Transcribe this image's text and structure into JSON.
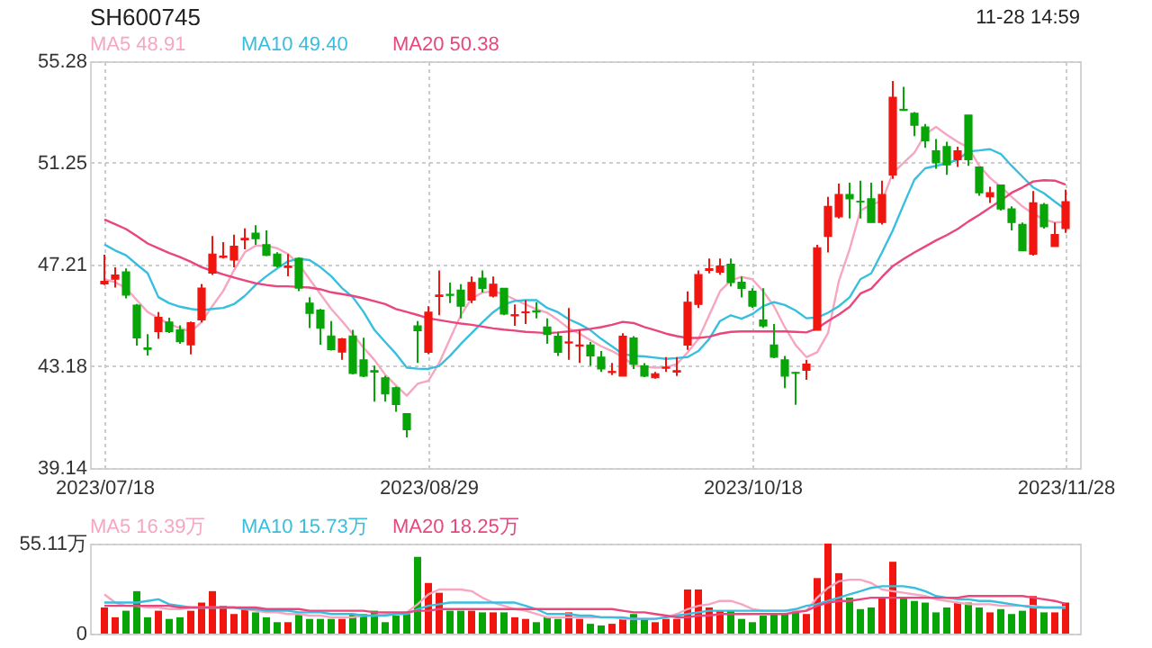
{
  "chart_data": [
    {
      "type": "candlestick",
      "title": "SH600745",
      "annotations": [
        "11-28 14:59"
      ],
      "categories": [
        "2023/07/18",
        null,
        null,
        null,
        null,
        null,
        null,
        null,
        null,
        null,
        null,
        null,
        null,
        null,
        null,
        null,
        null,
        null,
        null,
        null,
        null,
        null,
        null,
        null,
        null,
        null,
        null,
        null,
        null,
        null,
        "2023/08/29",
        null,
        null,
        null,
        null,
        null,
        null,
        null,
        null,
        null,
        null,
        null,
        null,
        null,
        null,
        null,
        null,
        null,
        null,
        null,
        null,
        null,
        null,
        null,
        null,
        null,
        null,
        null,
        null,
        null,
        "2023/10/18",
        null,
        null,
        null,
        null,
        null,
        null,
        null,
        null,
        null,
        null,
        null,
        null,
        null,
        null,
        null,
        null,
        null,
        null,
        null,
        null,
        null,
        null,
        null,
        null,
        null,
        null,
        null,
        null,
        "2023/11/28"
      ],
      "ohlc": [
        [
          46.45,
          47.6,
          46.4,
          46.55
        ],
        [
          46.63,
          47.1,
          46.3,
          46.8
        ],
        [
          46.92,
          47.06,
          45.87,
          46.0
        ],
        [
          45.6,
          45.65,
          44.0,
          44.3
        ],
        [
          43.9,
          44.45,
          43.6,
          43.85
        ],
        [
          44.55,
          45.33,
          44.26,
          45.12
        ],
        [
          44.93,
          45.1,
          44.5,
          44.55
        ],
        [
          44.62,
          44.8,
          44.07,
          44.15
        ],
        [
          44.03,
          44.95,
          43.65,
          44.9
        ],
        [
          45.02,
          46.44,
          44.92,
          46.28
        ],
        [
          46.87,
          48.34,
          46.8,
          47.63
        ],
        [
          47.5,
          48.1,
          47.45,
          47.55
        ],
        [
          47.39,
          48.4,
          47.1,
          47.94
        ],
        [
          48.2,
          48.65,
          47.82,
          48.25
        ],
        [
          48.46,
          48.77,
          48.0,
          48.24
        ],
        [
          48.0,
          48.57,
          47.55,
          47.58
        ],
        [
          47.63,
          47.7,
          47.1,
          47.15
        ],
        [
          47.1,
          47.63,
          46.75,
          47.15
        ],
        [
          47.46,
          47.5,
          46.16,
          46.28
        ],
        [
          45.68,
          45.92,
          44.69,
          45.28
        ],
        [
          45.4,
          45.45,
          44.03,
          44.69
        ],
        [
          44.38,
          44.97,
          43.8,
          43.84
        ],
        [
          43.74,
          44.3,
          43.43,
          44.26
        ],
        [
          44.38,
          44.62,
          42.85,
          42.89
        ],
        [
          43.43,
          44.31,
          42.75,
          42.79
        ],
        [
          43.0,
          43.2,
          41.77,
          42.95
        ],
        [
          42.72,
          42.8,
          41.77,
          42.08
        ],
        [
          42.32,
          42.37,
          41.37,
          41.66
        ],
        [
          41.3,
          41.3,
          40.35,
          40.66
        ],
        [
          44.78,
          44.97,
          43.31,
          44.59
        ],
        [
          43.73,
          45.56,
          43.66,
          45.32
        ],
        [
          45.95,
          46.98,
          45.2,
          46.0
        ],
        [
          46.03,
          46.5,
          45.68,
          45.99
        ],
        [
          46.2,
          46.43,
          45.08,
          45.56
        ],
        [
          45.8,
          46.74,
          45.68,
          46.5
        ],
        [
          46.67,
          46.98,
          46.1,
          46.27
        ],
        [
          45.96,
          46.74,
          45.91,
          46.43
        ],
        [
          46.27,
          46.27,
          45.2,
          45.25
        ],
        [
          45.18,
          45.63,
          44.78,
          45.22
        ],
        [
          45.3,
          45.8,
          44.85,
          45.33
        ],
        [
          45.38,
          45.72,
          45.08,
          45.33
        ],
        [
          44.73,
          45.08,
          44.07,
          44.44
        ],
        [
          44.37,
          44.54,
          43.59,
          43.73
        ],
        [
          44.1,
          45.49,
          43.43,
          44.14
        ],
        [
          43.98,
          44.61,
          43.31,
          44.02
        ],
        [
          44.02,
          44.14,
          43.19,
          43.59
        ],
        [
          43.54,
          43.78,
          42.95,
          43.07
        ],
        [
          42.93,
          43.31,
          42.83,
          42.97
        ],
        [
          42.79,
          44.49,
          42.79,
          44.37
        ],
        [
          44.3,
          44.37,
          43.07,
          43.26
        ],
        [
          43.19,
          43.3,
          42.75,
          42.79
        ],
        [
          42.72,
          42.95,
          42.68,
          42.88
        ],
        [
          43.1,
          43.54,
          42.95,
          43.14
        ],
        [
          42.95,
          43.54,
          42.79,
          43.0
        ],
        [
          44.02,
          46.15,
          43.83,
          45.72
        ],
        [
          45.63,
          46.98,
          45.49,
          46.81
        ],
        [
          46.98,
          47.45,
          46.86,
          47.05
        ],
        [
          46.91,
          47.45,
          46.81,
          47.15
        ],
        [
          47.22,
          47.45,
          46.34,
          46.5
        ],
        [
          46.51,
          46.74,
          45.91,
          46.27
        ],
        [
          46.15,
          46.27,
          45.5,
          45.56
        ],
        [
          45.01,
          46.27,
          44.7,
          44.78
        ],
        [
          44.02,
          44.85,
          43.5,
          43.54
        ],
        [
          43.43,
          43.59,
          42.31,
          42.79
        ],
        [
          42.93,
          42.95,
          41.65,
          42.9
        ],
        [
          43.02,
          43.43,
          42.64,
          43.26
        ],
        [
          44.61,
          48.0,
          44.61,
          47.88
        ],
        [
          48.33,
          49.9,
          47.69,
          49.52
        ],
        [
          49.11,
          50.42,
          49.04,
          49.99
        ],
        [
          49.99,
          50.46,
          49.04,
          49.82
        ],
        [
          49.72,
          50.54,
          49.04,
          49.7
        ],
        [
          49.82,
          50.46,
          48.88,
          48.88
        ],
        [
          48.88,
          50.54,
          48.8,
          49.99
        ],
        [
          50.77,
          54.49,
          50.61,
          53.85
        ],
        [
          53.37,
          54.26,
          53.31,
          53.33
        ],
        [
          53.21,
          53.26,
          52.31,
          52.74
        ],
        [
          52.67,
          52.79,
          51.84,
          52.12
        ],
        [
          51.72,
          52.19,
          51.01,
          51.25
        ],
        [
          51.89,
          52.08,
          50.77,
          51.17
        ],
        [
          51.37,
          51.89,
          51.08,
          51.72
        ],
        [
          53.14,
          53.14,
          51.13,
          51.37
        ],
        [
          51.08,
          51.08,
          49.94,
          50.06
        ],
        [
          49.9,
          50.3,
          49.66,
          50.06
        ],
        [
          50.37,
          50.37,
          49.35,
          49.42
        ],
        [
          49.42,
          49.52,
          48.57,
          48.88
        ],
        [
          48.8,
          48.88,
          47.76,
          47.76
        ],
        [
          47.62,
          50.13,
          47.57,
          49.66
        ],
        [
          49.59,
          49.66,
          48.64,
          48.71
        ],
        [
          47.93,
          48.88,
          47.93,
          48.4
        ],
        [
          48.64,
          50.18,
          48.47,
          49.71
        ]
      ],
      "colors": [
        "#f0160f",
        "#f0160f",
        "#07a507",
        "#07a507",
        "#07a507",
        "#f0160f",
        "#07a507",
        "#07a507",
        "#f0160f",
        "#f0160f",
        "#f0160f",
        "#f0160f",
        "#f0160f",
        "#f0160f",
        "#07a507",
        "#07a507",
        "#07a507",
        "#f0160f",
        "#07a507",
        "#07a507",
        "#07a507",
        "#07a507",
        "#f0160f",
        "#07a507",
        "#07a507",
        "#07a507",
        "#07a507",
        "#07a507",
        "#07a507",
        "#07a507",
        "#f0160f",
        "#f0160f",
        "#07a507",
        "#07a507",
        "#f0160f",
        "#07a507",
        "#f0160f",
        "#07a507",
        "#f0160f",
        "#f0160f",
        "#07a507",
        "#07a507",
        "#07a507",
        "#f0160f",
        "#f0160f",
        "#07a507",
        "#07a507",
        "#f0160f",
        "#f0160f",
        "#07a507",
        "#07a507",
        "#f0160f",
        "#f0160f",
        "#f0160f",
        "#f0160f",
        "#f0160f",
        "#f0160f",
        "#f0160f",
        "#07a507",
        "#07a507",
        "#07a507",
        "#07a507",
        "#07a507",
        "#07a507",
        "#07a507",
        "#f0160f",
        "#f0160f",
        "#f0160f",
        "#f0160f",
        "#07a507",
        "#07a507",
        "#07a507",
        "#f0160f",
        "#f0160f",
        "#07a507",
        "#07a507",
        "#07a507",
        "#07a507",
        "#07a507",
        "#f0160f",
        "#07a507",
        "#07a507",
        "#f0160f",
        "#07a507",
        "#07a507",
        "#07a507",
        "#f0160f",
        "#07a507",
        "#f0160f",
        "#f0160f"
      ],
      "series": [
        {
          "name": "MA5 48.91",
          "type": "line",
          "color": "#f7a6c2",
          "values": [
            46.63,
            46.51,
            46.28,
            45.8,
            45.33,
            45.09,
            44.85,
            44.69,
            44.55,
            44.93,
            45.57,
            46.16,
            46.99,
            47.7,
            47.96,
            47.96,
            47.86,
            47.63,
            47.22,
            46.63,
            46.04,
            45.45,
            44.97,
            44.45,
            43.91,
            43.43,
            42.84,
            42.41,
            42.01,
            42.48,
            42.6,
            43.31,
            44.26,
            45.2,
            45.87,
            46.1,
            46.15,
            46.03,
            45.82,
            45.63,
            45.44,
            45.3,
            45.01,
            44.68,
            44.47,
            44.21,
            43.97,
            43.78,
            43.54,
            43.21,
            43.16,
            43.12,
            43.14,
            43.26,
            43.73,
            44.26,
            45.2,
            46.15,
            46.58,
            46.72,
            46.63,
            46.15,
            45.56,
            44.73,
            44.02,
            43.54,
            43.73,
            44.49,
            46.55,
            47.81,
            49.35,
            49.59,
            49.73,
            50.84,
            51.25,
            51.65,
            52.38,
            52.67,
            52.36,
            52.08,
            51.86,
            51.13,
            50.65,
            50.3,
            49.9,
            49.52,
            49.23,
            49.0,
            48.88,
            48.91
          ]
        },
        {
          "name": "MA10 49.40",
          "type": "line",
          "color": "#38bfdf",
          "values": [
            48.01,
            47.77,
            47.58,
            47.22,
            46.87,
            45.92,
            45.68,
            45.54,
            45.45,
            45.4,
            45.45,
            45.49,
            45.64,
            45.97,
            46.4,
            46.75,
            47.06,
            47.34,
            47.44,
            47.39,
            47.11,
            46.75,
            46.28,
            45.92,
            45.33,
            44.62,
            44.14,
            43.67,
            43.12,
            43.08,
            43.07,
            43.19,
            43.59,
            44.06,
            44.49,
            44.92,
            45.32,
            45.63,
            45.77,
            45.8,
            45.8,
            45.49,
            45.32,
            45.04,
            44.85,
            44.61,
            44.26,
            43.97,
            43.66,
            43.59,
            43.57,
            43.52,
            43.47,
            43.5,
            43.54,
            43.78,
            44.26,
            44.97,
            45.2,
            45.06,
            45.25,
            45.56,
            45.72,
            45.61,
            45.39,
            45.08,
            45.11,
            45.3,
            45.56,
            45.91,
            46.63,
            46.86,
            47.69,
            48.57,
            49.59,
            50.58,
            51.03,
            51.13,
            51.22,
            51.37,
            51.7,
            51.74,
            51.79,
            51.6,
            51.13,
            50.7,
            50.27,
            50.04,
            49.71,
            49.4
          ]
        },
        {
          "name": "MA20 50.38",
          "type": "line",
          "color": "#e8477e",
          "values": [
            49.0,
            48.81,
            48.62,
            48.34,
            48.05,
            47.86,
            47.67,
            47.51,
            47.32,
            47.11,
            46.96,
            46.82,
            46.7,
            46.58,
            46.47,
            46.4,
            46.35,
            46.35,
            46.32,
            46.3,
            46.23,
            46.11,
            46.04,
            45.97,
            45.87,
            45.76,
            45.64,
            45.45,
            45.33,
            45.21,
            45.08,
            45.01,
            44.94,
            44.87,
            44.82,
            44.75,
            44.68,
            44.63,
            44.59,
            44.54,
            44.52,
            44.49,
            44.52,
            44.56,
            44.61,
            44.66,
            44.73,
            44.82,
            44.94,
            44.89,
            44.73,
            44.61,
            44.47,
            44.37,
            44.3,
            44.3,
            44.35,
            44.47,
            44.54,
            44.56,
            44.56,
            44.56,
            44.56,
            44.56,
            44.54,
            44.52,
            44.68,
            44.97,
            45.23,
            45.53,
            46.06,
            46.25,
            46.72,
            47.15,
            47.43,
            47.69,
            47.93,
            48.17,
            48.38,
            48.62,
            48.92,
            49.18,
            49.47,
            49.75,
            50.06,
            50.27,
            50.51,
            50.56,
            50.54,
            50.38
          ]
        }
      ],
      "ylim": [
        39.14,
        55.28
      ],
      "yticks": [
        39.14,
        43.18,
        47.21,
        51.25,
        55.28
      ],
      "grid": true,
      "legend": "top left"
    },
    {
      "type": "bar",
      "categories": [
        null,
        null,
        null,
        null,
        null,
        null,
        null,
        null,
        null,
        null,
        null,
        null,
        null,
        null,
        null,
        null,
        null,
        null,
        null,
        null,
        null,
        null,
        null,
        null,
        null,
        null,
        null,
        null,
        null,
        null,
        null,
        null,
        null,
        null,
        null,
        null,
        null,
        null,
        null,
        null,
        null,
        null,
        null,
        null,
        null,
        null,
        null,
        null,
        null,
        null,
        null,
        null,
        null,
        null,
        null,
        null,
        null,
        null,
        null,
        null,
        null,
        null,
        null,
        null,
        null,
        null,
        null,
        null,
        null,
        null,
        null,
        null,
        null,
        null,
        null,
        null,
        null,
        null,
        null,
        null,
        null,
        null,
        null,
        null,
        null,
        null,
        null,
        null,
        null,
        null
      ],
      "series": [
        {
          "type": "bar",
          "colors": [
            "#f0160f",
            "#f0160f",
            "#07a507",
            "#07a507",
            "#07a507",
            "#f0160f",
            "#07a507",
            "#07a507",
            "#f0160f",
            "#f0160f",
            "#f0160f",
            "#f0160f",
            "#f0160f",
            "#f0160f",
            "#07a507",
            "#07a507",
            "#07a507",
            "#f0160f",
            "#07a507",
            "#07a507",
            "#07a507",
            "#07a507",
            "#f0160f",
            "#07a507",
            "#07a507",
            "#07a507",
            "#07a507",
            "#07a507",
            "#07a507",
            "#07a507",
            "#f0160f",
            "#f0160f",
            "#07a507",
            "#07a507",
            "#f0160f",
            "#07a507",
            "#f0160f",
            "#07a507",
            "#f0160f",
            "#f0160f",
            "#07a507",
            "#07a507",
            "#07a507",
            "#f0160f",
            "#f0160f",
            "#07a507",
            "#07a507",
            "#f0160f",
            "#f0160f",
            "#07a507",
            "#07a507",
            "#f0160f",
            "#f0160f",
            "#f0160f",
            "#f0160f",
            "#f0160f",
            "#f0160f",
            "#f0160f",
            "#07a507",
            "#07a507",
            "#07a507",
            "#07a507",
            "#07a507",
            "#07a507",
            "#07a507",
            "#f0160f",
            "#f0160f",
            "#f0160f",
            "#f0160f",
            "#07a507",
            "#07a507",
            "#07a507",
            "#f0160f",
            "#f0160f",
            "#07a507",
            "#07a507",
            "#07a507",
            "#07a507",
            "#07a507",
            "#f0160f",
            "#07a507",
            "#07a507",
            "#f0160f",
            "#07a507",
            "#07a507",
            "#07a507",
            "#f0160f",
            "#07a507",
            "#f0160f",
            "#f0160f"
          ],
          "values": [
            16,
            10,
            14,
            26,
            10,
            14,
            9,
            10,
            14,
            19,
            26,
            17,
            12,
            15,
            13,
            10,
            7,
            7,
            12,
            9,
            9,
            9,
            9,
            12,
            12,
            14,
            7,
            11,
            12,
            47,
            31,
            25,
            14,
            14,
            14,
            13,
            13,
            13,
            10,
            9,
            7,
            10,
            9,
            13,
            9,
            6,
            5,
            6,
            10,
            12,
            9,
            7,
            9,
            9,
            27,
            27,
            16,
            14,
            14,
            9,
            7,
            11,
            12,
            12,
            14,
            12,
            34,
            55.11,
            37,
            22,
            15,
            16,
            22,
            44,
            22,
            20,
            19,
            13,
            16,
            19,
            19,
            16,
            13,
            15,
            12,
            14,
            23,
            13,
            13,
            19
          ]
        },
        {
          "name": "MA5 16.39万",
          "type": "line",
          "color": "#f7a6c2",
          "values": [
            24,
            19,
            17,
            17,
            16,
            16,
            15,
            15,
            16,
            16,
            16,
            16,
            16,
            15,
            14,
            13,
            13,
            12,
            12,
            11,
            11,
            10,
            10,
            10,
            11,
            11,
            12,
            12,
            13,
            18,
            24,
            27,
            27,
            27,
            26,
            22,
            19,
            17,
            15,
            14,
            12,
            10,
            10,
            10,
            10,
            10,
            10,
            10,
            9,
            9,
            9,
            9,
            10,
            12,
            15,
            17,
            18,
            20,
            20,
            18,
            15,
            14,
            14,
            14,
            14,
            14,
            22,
            28,
            32,
            33,
            33,
            31,
            27,
            26,
            25,
            24,
            23,
            21,
            20,
            19,
            18,
            18,
            18,
            17,
            17,
            17,
            17,
            16,
            16,
            16.39
          ]
        },
        {
          "name": "MA10 15.73万",
          "type": "line",
          "color": "#38bfdf",
          "values": [
            19,
            19,
            19,
            19,
            20,
            21,
            18,
            17,
            16,
            16,
            16,
            16,
            16,
            15,
            15,
            14,
            14,
            14,
            13,
            13,
            13,
            12,
            12,
            12,
            11,
            11,
            11,
            12,
            12,
            15,
            17,
            18,
            19,
            19,
            19,
            19,
            19,
            19,
            19,
            17,
            15,
            12,
            12,
            12,
            11,
            11,
            10,
            10,
            10,
            9,
            9,
            9,
            10,
            11,
            12,
            13,
            14,
            14,
            14,
            14,
            14,
            14,
            14,
            14,
            15,
            17,
            18,
            20,
            22,
            24,
            26,
            28,
            29,
            29,
            29,
            28,
            26,
            23,
            22,
            21,
            21,
            20,
            20,
            19,
            18,
            17,
            16,
            16,
            16,
            15.73
          ]
        },
        {
          "name": "MA20 18.25万",
          "type": "line",
          "color": "#e8477e",
          "values": [
            17,
            17,
            17,
            17,
            17,
            17,
            17,
            16,
            16,
            16,
            16,
            16,
            16,
            16,
            16,
            15,
            15,
            15,
            15,
            14,
            14,
            14,
            14,
            14,
            14,
            13,
            13,
            13,
            13,
            14,
            14,
            15,
            15,
            15,
            15,
            15,
            15,
            15,
            15,
            15,
            15,
            15,
            15,
            15,
            15,
            15,
            15,
            15,
            14,
            13,
            13,
            12,
            11,
            10,
            10,
            11,
            11,
            12,
            12,
            12,
            12,
            12,
            12,
            12,
            13,
            14,
            17,
            19,
            20,
            20,
            21,
            22,
            22,
            22,
            22,
            22,
            22,
            22,
            22,
            22,
            23,
            23,
            23,
            23,
            23,
            23,
            22,
            21,
            20,
            18.25
          ]
        }
      ],
      "ylim": [
        0,
        55.11
      ],
      "yticks": [
        0,
        {
          "value": 55.11,
          "label": "55.11万"
        }
      ],
      "grid": true,
      "legend": "top left"
    }
  ]
}
